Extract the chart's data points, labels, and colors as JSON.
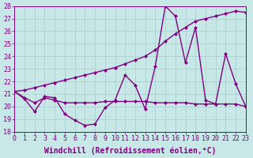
{
  "xlabel": "Windchill (Refroidissement éolien,°C)",
  "background_color": "#c8e8e8",
  "line_color": "#800080",
  "ylim": [
    18,
    28
  ],
  "xlim": [
    0,
    23
  ],
  "yticks": [
    18,
    19,
    20,
    21,
    22,
    23,
    24,
    25,
    26,
    27,
    28
  ],
  "xticks": [
    0,
    1,
    2,
    3,
    4,
    5,
    6,
    7,
    8,
    9,
    10,
    11,
    12,
    13,
    14,
    15,
    16,
    17,
    18,
    19,
    20,
    21,
    22,
    23
  ],
  "series1_x": [
    0,
    1,
    2,
    3,
    4,
    5,
    6,
    7,
    8,
    9,
    10,
    11,
    12,
    13,
    14,
    15,
    16,
    17,
    18,
    19,
    20,
    21,
    22,
    23
  ],
  "series1_y": [
    21.2,
    20.6,
    19.6,
    20.8,
    20.7,
    19.4,
    18.9,
    18.5,
    18.6,
    19.9,
    20.5,
    22.5,
    21.7,
    19.8,
    23.2,
    28.0,
    27.2,
    23.5,
    26.3,
    20.5,
    20.2,
    24.2,
    21.8,
    20.0
  ],
  "series2_x": [
    0,
    1,
    2,
    3,
    4,
    5,
    6,
    7,
    8,
    9,
    10,
    11,
    12,
    13,
    14,
    15,
    16,
    17,
    18,
    19,
    20,
    21,
    22,
    23
  ],
  "series2_y": [
    21.2,
    21.3,
    21.5,
    21.7,
    21.9,
    22.1,
    22.3,
    22.5,
    22.7,
    22.9,
    23.1,
    23.4,
    23.7,
    24.0,
    24.5,
    25.2,
    25.8,
    26.3,
    26.8,
    27.0,
    27.2,
    27.4,
    27.6,
    27.5
  ],
  "series3_x": [
    0,
    1,
    2,
    3,
    4,
    5,
    6,
    7,
    8,
    9,
    10,
    11,
    12,
    13,
    14,
    15,
    16,
    17,
    18,
    19,
    20,
    21,
    22,
    23
  ],
  "series3_y": [
    21.2,
    20.7,
    20.3,
    20.7,
    20.5,
    20.3,
    20.3,
    20.3,
    20.3,
    20.4,
    20.4,
    20.4,
    20.4,
    20.4,
    20.3,
    20.3,
    20.3,
    20.3,
    20.2,
    20.2,
    20.2,
    20.2,
    20.2,
    20.0
  ],
  "grid_color": "#a8cccc",
  "marker": "D",
  "marker_size": 2.5,
  "linewidth": 1.0,
  "font_color": "#800080",
  "font_size": 6,
  "xlabel_fontsize": 7
}
